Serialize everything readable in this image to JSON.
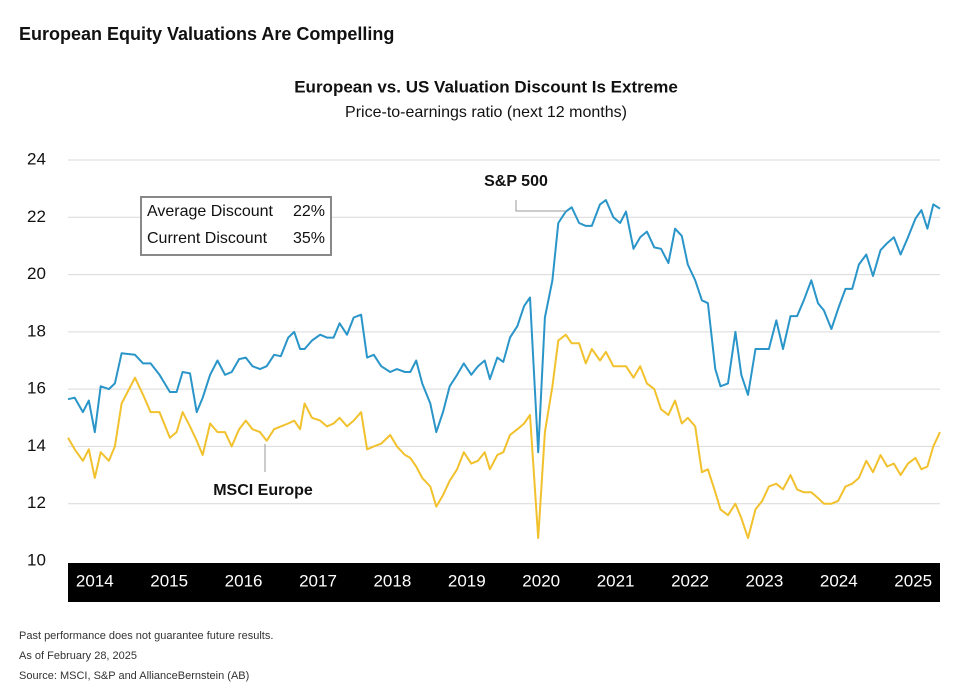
{
  "chart_data": {
    "type": "line",
    "header": "European Equity Valuations Are Compelling",
    "title": "European vs. US Valuation Discount Is Extreme",
    "subtitle": "Price-to-earnings ratio (next 12 months)",
    "x": [
      2013.64,
      2013.73,
      2013.84,
      2013.92,
      2014.0,
      2014.08,
      2014.19,
      2014.27,
      2014.36,
      2014.54,
      2014.65,
      2014.75,
      2014.87,
      2015.01,
      2015.1,
      2015.18,
      2015.28,
      2015.37,
      2015.45,
      2015.55,
      2015.65,
      2015.75,
      2015.84,
      2015.94,
      2016.03,
      2016.12,
      2016.22,
      2016.31,
      2016.41,
      2016.5,
      2016.6,
      2016.68,
      2016.76,
      2016.82,
      2016.92,
      2017.03,
      2017.12,
      2017.21,
      2017.29,
      2017.39,
      2017.48,
      2017.58,
      2017.66,
      2017.75,
      2017.85,
      2017.97,
      2018.06,
      2018.17,
      2018.24,
      2018.32,
      2018.4,
      2018.51,
      2018.59,
      2018.68,
      2018.77,
      2018.87,
      2018.96,
      2019.06,
      2019.15,
      2019.24,
      2019.31,
      2019.41,
      2019.49,
      2019.58,
      2019.68,
      2019.77,
      2019.85,
      2019.96,
      2020.05,
      2020.15,
      2020.23,
      2020.33,
      2020.41,
      2020.51,
      2020.6,
      2020.68,
      2020.79,
      2020.87,
      2020.97,
      2021.06,
      2021.14,
      2021.24,
      2021.33,
      2021.42,
      2021.52,
      2021.61,
      2021.71,
      2021.8,
      2021.89,
      2021.97,
      2022.07,
      2022.16,
      2022.24,
      2022.34,
      2022.41,
      2022.51,
      2022.61,
      2022.69,
      2022.78,
      2022.88,
      2022.97,
      2023.06,
      2023.16,
      2023.25,
      2023.35,
      2023.44,
      2023.53,
      2023.63,
      2023.72,
      2023.8,
      2023.9,
      2023.99,
      2024.09,
      2024.18,
      2024.27,
      2024.37,
      2024.46,
      2024.56,
      2024.65,
      2024.74,
      2024.83,
      2024.93,
      2025.03,
      2025.11,
      2025.19,
      2025.27,
      2025.36
    ],
    "series": [
      {
        "name": "S&P 500",
        "color": "#2a95c8",
        "values": [
          15.65,
          15.7,
          15.2,
          15.6,
          14.5,
          16.1,
          16.0,
          16.2,
          17.25,
          17.2,
          16.9,
          16.9,
          16.5,
          15.9,
          15.9,
          16.6,
          16.55,
          15.2,
          15.7,
          16.5,
          17.0,
          16.5,
          16.6,
          17.05,
          17.1,
          16.8,
          16.7,
          16.8,
          17.2,
          17.15,
          17.8,
          18.0,
          17.4,
          17.4,
          17.7,
          17.9,
          17.8,
          17.8,
          18.3,
          17.9,
          18.5,
          18.6,
          17.1,
          17.2,
          16.8,
          16.6,
          16.7,
          16.6,
          16.6,
          17.0,
          16.2,
          15.5,
          14.5,
          15.2,
          16.1,
          16.5,
          16.9,
          16.5,
          16.8,
          17.0,
          16.35,
          17.1,
          16.95,
          17.8,
          18.2,
          18.9,
          19.2,
          13.8,
          18.5,
          19.8,
          21.8,
          22.2,
          22.35,
          21.8,
          21.7,
          21.7,
          22.45,
          22.6,
          22.0,
          21.8,
          22.2,
          20.9,
          21.3,
          21.5,
          20.95,
          20.9,
          20.4,
          21.6,
          21.35,
          20.35,
          19.8,
          19.1,
          19.0,
          16.7,
          16.1,
          16.2,
          18.0,
          16.5,
          15.8,
          17.4,
          17.4,
          17.4,
          18.4,
          17.4,
          18.55,
          18.55,
          19.1,
          19.8,
          19.0,
          18.75,
          18.1,
          18.8,
          19.5,
          19.5,
          20.35,
          20.7,
          19.95,
          20.85,
          21.1,
          21.3,
          20.7,
          21.3,
          21.95,
          22.25,
          21.6,
          22.45,
          22.3
        ]
      },
      {
        "name": "MSCI Europe",
        "color": "#f2c12e",
        "values": [
          14.3,
          13.9,
          13.5,
          13.9,
          12.9,
          13.8,
          13.5,
          14.0,
          15.5,
          16.4,
          15.8,
          15.2,
          15.2,
          14.3,
          14.5,
          15.2,
          14.7,
          14.2,
          13.7,
          14.8,
          14.5,
          14.5,
          14.0,
          14.6,
          14.9,
          14.6,
          14.5,
          14.2,
          14.6,
          14.7,
          14.8,
          14.9,
          14.6,
          15.5,
          15.0,
          14.9,
          14.7,
          14.8,
          15.0,
          14.7,
          14.9,
          15.2,
          13.9,
          14.0,
          14.1,
          14.4,
          14.0,
          13.7,
          13.6,
          13.3,
          12.9,
          12.6,
          11.9,
          12.3,
          12.8,
          13.2,
          13.8,
          13.4,
          13.5,
          13.8,
          13.2,
          13.7,
          13.8,
          14.4,
          14.6,
          14.8,
          15.1,
          10.8,
          14.5,
          16.1,
          17.7,
          17.9,
          17.6,
          17.6,
          16.9,
          17.4,
          17.0,
          17.3,
          16.8,
          16.8,
          16.8,
          16.4,
          16.8,
          16.2,
          16.0,
          15.3,
          15.1,
          15.6,
          14.8,
          15.0,
          14.7,
          13.1,
          13.2,
          12.4,
          11.8,
          11.6,
          12.0,
          11.5,
          10.8,
          11.8,
          12.1,
          12.6,
          12.7,
          12.5,
          13.0,
          12.5,
          12.4,
          12.4,
          12.2,
          12.0,
          12.0,
          12.1,
          12.6,
          12.7,
          12.9,
          13.5,
          13.1,
          13.7,
          13.3,
          13.4,
          13.0,
          13.4,
          13.6,
          13.2,
          13.3,
          14.0,
          14.5
        ]
      }
    ],
    "xlim": [
      2013.64,
      2025.36
    ],
    "xticks": [
      2014,
      2015,
      2016,
      2017,
      2018,
      2019,
      2020,
      2021,
      2022,
      2023,
      2024,
      2025
    ],
    "ylim": [
      10,
      24
    ],
    "yticks": [
      10,
      12,
      14,
      16,
      18,
      20,
      22,
      24
    ],
    "grid": true,
    "box": [
      {
        "label": "Average Discount",
        "value": "22%"
      },
      {
        "label": "Current Discount",
        "value": "35%"
      }
    ],
    "notes": [
      "Past performance does not guarantee future results.",
      "As of February 28, 2025",
      "Source: MSCI, S&P and AllianceBernstein (AB)"
    ]
  }
}
